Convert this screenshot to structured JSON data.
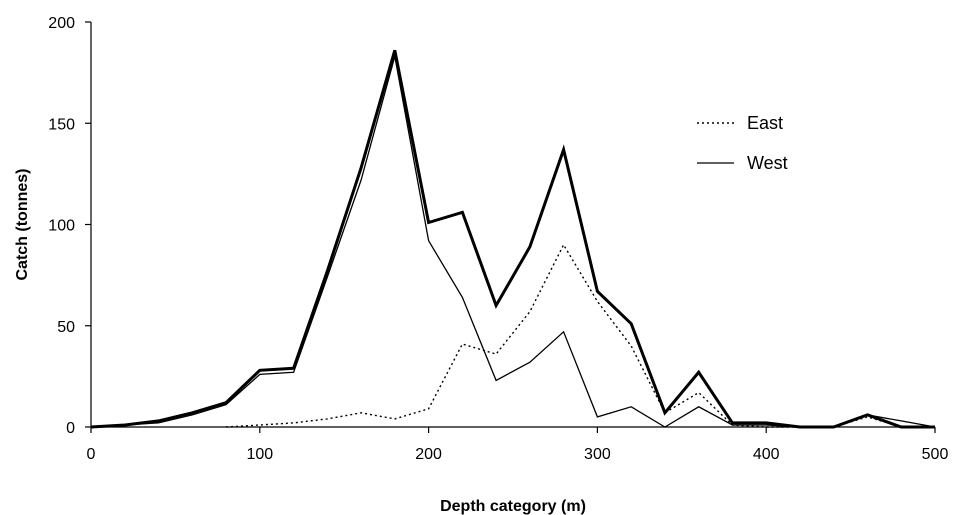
{
  "chart_data": {
    "type": "line",
    "title": "",
    "xlabel": "Depth category (m)",
    "ylabel": "Catch (tonnes)",
    "xlim": [
      0,
      500
    ],
    "ylim": [
      0,
      200
    ],
    "x_ticks": [
      0,
      100,
      200,
      300,
      400,
      500
    ],
    "y_ticks": [
      0,
      50,
      100,
      150,
      200
    ],
    "grid": false,
    "legend_position": "top-right",
    "series": [
      {
        "name": "East",
        "style": "dotted",
        "color": "#000000",
        "points": [
          [
            80,
            0
          ],
          [
            100,
            1
          ],
          [
            120,
            2
          ],
          [
            140,
            4
          ],
          [
            160,
            7
          ],
          [
            180,
            4
          ],
          [
            200,
            9
          ],
          [
            220,
            41
          ],
          [
            240,
            36
          ],
          [
            260,
            57
          ],
          [
            280,
            90
          ],
          [
            300,
            62
          ],
          [
            320,
            40
          ],
          [
            340,
            7
          ],
          [
            360,
            17
          ],
          [
            380,
            1
          ],
          [
            400,
            0
          ],
          [
            420,
            0
          ],
          [
            440,
            0
          ],
          [
            460,
            5
          ],
          [
            480,
            0
          ],
          [
            500,
            0
          ]
        ]
      },
      {
        "name": "West",
        "style": "thin",
        "color": "#000000",
        "points": [
          [
            0,
            0
          ],
          [
            20,
            1
          ],
          [
            40,
            2
          ],
          [
            60,
            6
          ],
          [
            80,
            11
          ],
          [
            100,
            26
          ],
          [
            120,
            27
          ],
          [
            140,
            74
          ],
          [
            160,
            122
          ],
          [
            180,
            183
          ],
          [
            200,
            92
          ],
          [
            220,
            64
          ],
          [
            240,
            23
          ],
          [
            260,
            32
          ],
          [
            280,
            47
          ],
          [
            300,
            5
          ],
          [
            320,
            10
          ],
          [
            340,
            0
          ],
          [
            360,
            10
          ],
          [
            380,
            1
          ],
          [
            400,
            1
          ],
          [
            420,
            0
          ],
          [
            440,
            0
          ],
          [
            460,
            6
          ],
          [
            480,
            3
          ],
          [
            500,
            0
          ]
        ]
      },
      {
        "name": "",
        "style": "thick",
        "color": "#000000",
        "points": [
          [
            0,
            0
          ],
          [
            20,
            1
          ],
          [
            40,
            3
          ],
          [
            60,
            7
          ],
          [
            80,
            12
          ],
          [
            100,
            28
          ],
          [
            120,
            29
          ],
          [
            140,
            77
          ],
          [
            160,
            128
          ],
          [
            180,
            186
          ],
          [
            200,
            101
          ],
          [
            220,
            106
          ],
          [
            240,
            60
          ],
          [
            260,
            89
          ],
          [
            280,
            137
          ],
          [
            300,
            67
          ],
          [
            320,
            51
          ],
          [
            340,
            7
          ],
          [
            360,
            27
          ],
          [
            380,
            2
          ],
          [
            400,
            2
          ],
          [
            420,
            0
          ],
          [
            440,
            0
          ],
          [
            460,
            6
          ],
          [
            480,
            0
          ],
          [
            500,
            0
          ]
        ]
      }
    ]
  }
}
